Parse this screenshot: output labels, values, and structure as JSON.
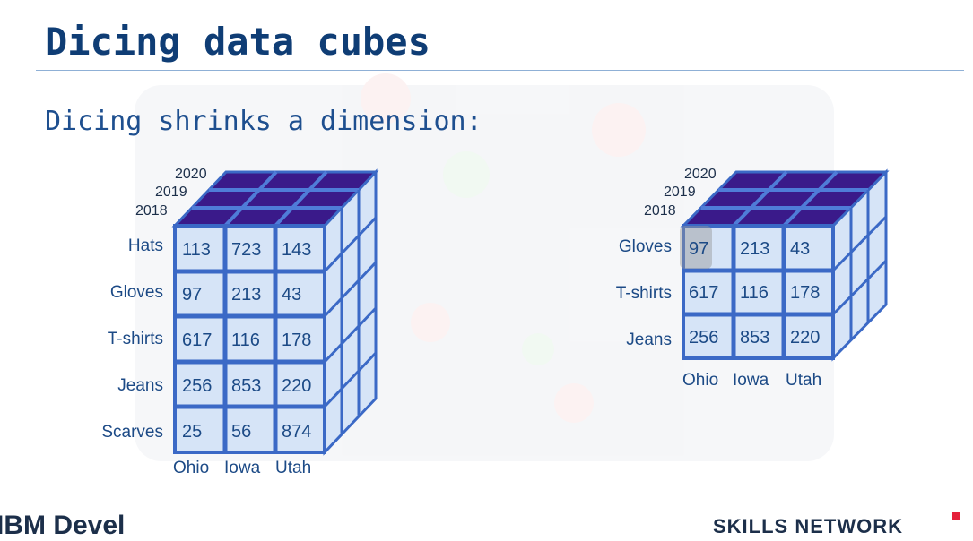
{
  "slide": {
    "title": "Dicing data cubes",
    "subtitle": "Dicing shrinks a dimension:"
  },
  "cube_full": {
    "years": [
      "2020",
      "2019",
      "2018"
    ],
    "products": [
      "Hats",
      "Gloves",
      "T-shirts",
      "Jeans",
      "Scarves"
    ],
    "states": [
      "Ohio",
      "Iowa",
      "Utah"
    ],
    "values": [
      [
        "113",
        "723",
        "143"
      ],
      [
        "97",
        "213",
        "43"
      ],
      [
        "617",
        "116",
        "178"
      ],
      [
        "256",
        "853",
        "220"
      ],
      [
        "25",
        "56",
        "874"
      ]
    ]
  },
  "cube_diced": {
    "years": [
      "2020",
      "2019",
      "2018"
    ],
    "products": [
      "Gloves",
      "T-shirts",
      "Jeans"
    ],
    "states": [
      "Ohio",
      "Iowa",
      "Utah"
    ],
    "values": [
      [
        "97",
        "213",
        "43"
      ],
      [
        "617",
        "116",
        "178"
      ],
      [
        "256",
        "853",
        "220"
      ]
    ]
  },
  "footer": {
    "left_text": "IBM Devel",
    "right_text": "SKILLS NETWORK"
  },
  "colors": {
    "cube_face": "#d6e4f7",
    "cube_edge": "#3b69c6",
    "cube_top": "#3a1a8a",
    "text_blue": "#1c4a86",
    "title": "#0f3d75"
  }
}
